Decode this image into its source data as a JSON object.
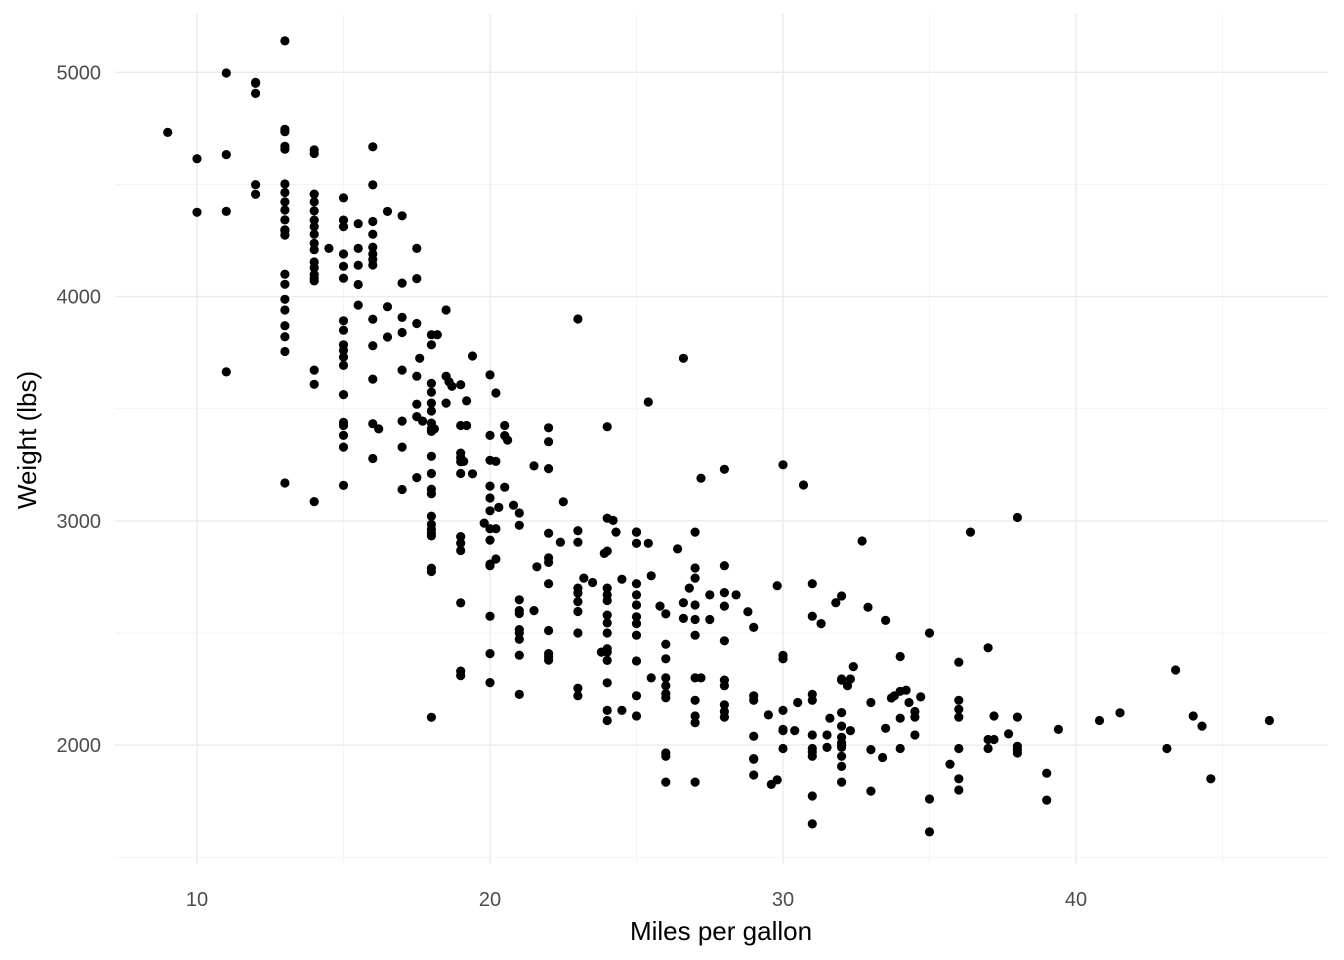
{
  "chart_data": {
    "type": "scatter",
    "title": "",
    "xlabel": "Miles per gallon",
    "ylabel": "Weight (lbs)",
    "xlim": [
      7.2,
      48.6
    ],
    "ylim": [
      1470,
      5260
    ],
    "x_ticks": [
      10,
      20,
      30,
      40
    ],
    "x_tick_labels": [
      "10",
      "20",
      "30",
      "40"
    ],
    "y_ticks": [
      2000,
      3000,
      4000,
      5000
    ],
    "y_tick_labels": [
      "2000",
      "3000",
      "4000",
      "5000"
    ],
    "grid": true,
    "legend": "none",
    "point_color": "#000000",
    "points": [
      [
        9,
        4732
      ],
      [
        10,
        4615
      ],
      [
        10,
        4376
      ],
      [
        11,
        4997
      ],
      [
        11,
        4633
      ],
      [
        11,
        4380
      ],
      [
        11,
        3664
      ],
      [
        12,
        4955
      ],
      [
        12,
        4951
      ],
      [
        12,
        4906
      ],
      [
        12,
        4499
      ],
      [
        12,
        4456
      ],
      [
        13,
        5140
      ],
      [
        13,
        4746
      ],
      [
        13,
        4735
      ],
      [
        13,
        4670
      ],
      [
        13,
        4657
      ],
      [
        13,
        4502
      ],
      [
        13,
        4464
      ],
      [
        13,
        4422
      ],
      [
        13,
        4386
      ],
      [
        13,
        4342
      ],
      [
        13,
        4298
      ],
      [
        13,
        4294
      ],
      [
        13,
        4274
      ],
      [
        13,
        4100
      ],
      [
        13,
        4055
      ],
      [
        13,
        3988
      ],
      [
        13,
        3940
      ],
      [
        13,
        3870
      ],
      [
        13,
        3821
      ],
      [
        13,
        3755
      ],
      [
        13,
        3169
      ],
      [
        14,
        4654
      ],
      [
        14,
        4638
      ],
      [
        14,
        4457
      ],
      [
        14,
        4422
      ],
      [
        14,
        4382
      ],
      [
        14,
        4341
      ],
      [
        14,
        4312
      ],
      [
        14,
        4278
      ],
      [
        14,
        4237
      ],
      [
        14,
        4209
      ],
      [
        14,
        4154
      ],
      [
        14,
        4129
      ],
      [
        14,
        4098
      ],
      [
        14,
        4082
      ],
      [
        14,
        4070
      ],
      [
        14,
        3672
      ],
      [
        14,
        3609
      ],
      [
        14,
        3086
      ],
      [
        14.5,
        4215
      ],
      [
        15,
        4440
      ],
      [
        15,
        4341
      ],
      [
        15,
        4312
      ],
      [
        15,
        4190
      ],
      [
        15,
        4135
      ],
      [
        15,
        4082
      ],
      [
        15,
        3892
      ],
      [
        15,
        3850
      ],
      [
        15,
        3785
      ],
      [
        15,
        3760
      ],
      [
        15,
        3730
      ],
      [
        15,
        3693
      ],
      [
        15,
        3563
      ],
      [
        15,
        3439
      ],
      [
        15,
        3425
      ],
      [
        15,
        3381
      ],
      [
        15,
        3329
      ],
      [
        15,
        3158
      ],
      [
        15.5,
        4325
      ],
      [
        15.5,
        4140
      ],
      [
        15.5,
        4054
      ],
      [
        15.5,
        3962
      ],
      [
        15.5,
        4215
      ],
      [
        16,
        4668
      ],
      [
        16,
        4498
      ],
      [
        16,
        4335
      ],
      [
        16,
        4278
      ],
      [
        16,
        4220
      ],
      [
        16,
        4190
      ],
      [
        16,
        4165
      ],
      [
        16,
        4141
      ],
      [
        16,
        3899
      ],
      [
        16,
        3781
      ],
      [
        16,
        3632
      ],
      [
        16,
        3433
      ],
      [
        16,
        3278
      ],
      [
        16.2,
        3410
      ],
      [
        16.5,
        4380
      ],
      [
        16.5,
        3955
      ],
      [
        16.5,
        3820
      ],
      [
        17,
        4360
      ],
      [
        17,
        4060
      ],
      [
        17,
        3907
      ],
      [
        17,
        3840
      ],
      [
        17,
        3672
      ],
      [
        17,
        3445
      ],
      [
        17,
        3329
      ],
      [
        17,
        3140
      ],
      [
        17.5,
        4215
      ],
      [
        17.5,
        4080
      ],
      [
        17.5,
        3880
      ],
      [
        17.5,
        3645
      ],
      [
        17.5,
        3520
      ],
      [
        17.5,
        3465
      ],
      [
        17.5,
        3193
      ],
      [
        17.6,
        3725
      ],
      [
        17.7,
        3445
      ],
      [
        18,
        3830
      ],
      [
        18,
        3785
      ],
      [
        18,
        3613
      ],
      [
        18,
        3574
      ],
      [
        18,
        3525
      ],
      [
        18,
        3490
      ],
      [
        18,
        3436
      ],
      [
        18,
        3410
      ],
      [
        18,
        3399
      ],
      [
        18,
        3288
      ],
      [
        18,
        3211
      ],
      [
        18,
        3141
      ],
      [
        18,
        3121
      ],
      [
        18,
        3021
      ],
      [
        18,
        2984
      ],
      [
        18,
        2962
      ],
      [
        18,
        2945
      ],
      [
        18,
        2933
      ],
      [
        18,
        2789
      ],
      [
        18,
        2774
      ],
      [
        18,
        2124
      ],
      [
        18.1,
        3410
      ],
      [
        18.2,
        3830
      ],
      [
        18.5,
        3940
      ],
      [
        18.5,
        3645
      ],
      [
        18.5,
        3525
      ],
      [
        18.6,
        3620
      ],
      [
        18.7,
        3600
      ],
      [
        19,
        3607
      ],
      [
        19,
        3425
      ],
      [
        19,
        3302
      ],
      [
        19,
        3282
      ],
      [
        19,
        3264
      ],
      [
        19,
        3211
      ],
      [
        19,
        2930
      ],
      [
        19,
        2901
      ],
      [
        19,
        2868
      ],
      [
        19,
        2634
      ],
      [
        19,
        2330
      ],
      [
        19,
        2310
      ],
      [
        19.2,
        3535
      ],
      [
        19.2,
        3425
      ],
      [
        19.1,
        3265
      ],
      [
        19.4,
        3735
      ],
      [
        19.4,
        3210
      ],
      [
        19.8,
        2990
      ],
      [
        20,
        3651
      ],
      [
        20,
        3381
      ],
      [
        20,
        3270
      ],
      [
        20,
        3155
      ],
      [
        20,
        3102
      ],
      [
        20,
        3045
      ],
      [
        20,
        2965
      ],
      [
        20,
        2914
      ],
      [
        20,
        2807
      ],
      [
        20,
        2800
      ],
      [
        20,
        2408
      ],
      [
        20,
        2279
      ],
      [
        20,
        2575
      ],
      [
        20.2,
        3570
      ],
      [
        20.2,
        3265
      ],
      [
        20.2,
        2965
      ],
      [
        20.2,
        2830
      ],
      [
        20.3,
        3060
      ],
      [
        20.5,
        3425
      ],
      [
        20.5,
        3380
      ],
      [
        20.6,
        3360
      ],
      [
        20.5,
        3150
      ],
      [
        20.8,
        3070
      ],
      [
        21,
        3035
      ],
      [
        21,
        2980
      ],
      [
        21,
        2648
      ],
      [
        21,
        2600
      ],
      [
        21,
        2587
      ],
      [
        21,
        2515
      ],
      [
        21,
        2500
      ],
      [
        21,
        2472
      ],
      [
        21,
        2401
      ],
      [
        21,
        2226
      ],
      [
        21.5,
        3245
      ],
      [
        21.5,
        2600
      ],
      [
        21.6,
        2795
      ],
      [
        22,
        3415
      ],
      [
        22,
        3353
      ],
      [
        22,
        3233
      ],
      [
        22,
        2945
      ],
      [
        22,
        2835
      ],
      [
        22,
        2815
      ],
      [
        22,
        2720
      ],
      [
        22,
        2511
      ],
      [
        22,
        2408
      ],
      [
        22,
        2395
      ],
      [
        22,
        2379
      ],
      [
        22.4,
        2905
      ],
      [
        22.5,
        3085
      ],
      [
        23,
        3900
      ],
      [
        23,
        2956
      ],
      [
        23,
        2905
      ],
      [
        23,
        2700
      ],
      [
        23,
        2678
      ],
      [
        23,
        2640
      ],
      [
        23,
        2596
      ],
      [
        23,
        2500
      ],
      [
        23,
        2254
      ],
      [
        23,
        2220
      ],
      [
        23.2,
        2745
      ],
      [
        23.5,
        2725
      ],
      [
        23.8,
        2415
      ],
      [
        23.9,
        2855
      ],
      [
        24,
        3420
      ],
      [
        24,
        3012
      ],
      [
        24,
        2865
      ],
      [
        24,
        2700
      ],
      [
        24,
        2670
      ],
      [
        24,
        2645
      ],
      [
        24,
        2580
      ],
      [
        24,
        2545
      ],
      [
        24,
        2500
      ],
      [
        24,
        2430
      ],
      [
        24,
        2415
      ],
      [
        24,
        2378
      ],
      [
        24,
        2278
      ],
      [
        24,
        2155
      ],
      [
        24,
        2110
      ],
      [
        24.2,
        3002
      ],
      [
        24.3,
        2950
      ],
      [
        24.5,
        2740
      ],
      [
        24.5,
        2155
      ],
      [
        25,
        2950
      ],
      [
        25,
        2950
      ],
      [
        25,
        2900
      ],
      [
        25,
        2720
      ],
      [
        25,
        2670
      ],
      [
        25,
        2625
      ],
      [
        25,
        2572
      ],
      [
        25,
        2542
      ],
      [
        25,
        2490
      ],
      [
        25,
        2375
      ],
      [
        25,
        2220
      ],
      [
        25,
        2130
      ],
      [
        25.4,
        3530
      ],
      [
        25.4,
        2900
      ],
      [
        25.5,
        2755
      ],
      [
        25.5,
        2300
      ],
      [
        25.8,
        2620
      ],
      [
        26,
        2585
      ],
      [
        26,
        2450
      ],
      [
        26,
        2385
      ],
      [
        26,
        2300
      ],
      [
        26,
        2265
      ],
      [
        26,
        2230
      ],
      [
        26,
        2211
      ],
      [
        26,
        1965
      ],
      [
        26,
        1950
      ],
      [
        26,
        1835
      ],
      [
        26.4,
        2875
      ],
      [
        26.6,
        2635
      ],
      [
        26.6,
        2565
      ],
      [
        26.6,
        3725
      ],
      [
        26.8,
        2700
      ],
      [
        27,
        2950
      ],
      [
        27,
        2790
      ],
      [
        27,
        2745
      ],
      [
        27,
        2625
      ],
      [
        27,
        2560
      ],
      [
        27,
        2490
      ],
      [
        27,
        2300
      ],
      [
        27,
        2130
      ],
      [
        27,
        2100
      ],
      [
        27,
        1835
      ],
      [
        27,
        2200
      ],
      [
        27.2,
        3190
      ],
      [
        27.2,
        2300
      ],
      [
        27.5,
        2670
      ],
      [
        27.5,
        2560
      ],
      [
        28,
        3230
      ],
      [
        28,
        2800
      ],
      [
        28,
        2680
      ],
      [
        28,
        2620
      ],
      [
        28,
        2465
      ],
      [
        28,
        2290
      ],
      [
        28,
        2265
      ],
      [
        28,
        2180
      ],
      [
        28,
        2150
      ],
      [
        28,
        2125
      ],
      [
        28.4,
        2670
      ],
      [
        28.8,
        2595
      ],
      [
        29,
        2525
      ],
      [
        29,
        2220
      ],
      [
        29,
        2200
      ],
      [
        29,
        2040
      ],
      [
        29,
        1937
      ],
      [
        29,
        1940
      ],
      [
        29,
        1867
      ],
      [
        29.5,
        2135
      ],
      [
        29.8,
        2711
      ],
      [
        29.8,
        1845
      ],
      [
        30,
        3250
      ],
      [
        30,
        2400
      ],
      [
        30,
        2385
      ],
      [
        30,
        2155
      ],
      [
        30,
        2065
      ],
      [
        30,
        2070
      ],
      [
        30,
        1985
      ],
      [
        29.6,
        1825
      ],
      [
        30.5,
        2190
      ],
      [
        30.4,
        2065
      ],
      [
        30.7,
        3160
      ],
      [
        31,
        2720
      ],
      [
        31,
        2575
      ],
      [
        31,
        2226
      ],
      [
        31,
        2200
      ],
      [
        31,
        2045
      ],
      [
        31,
        1985
      ],
      [
        31,
        1970
      ],
      [
        31,
        1950
      ],
      [
        31,
        1773
      ],
      [
        31,
        1649
      ],
      [
        31.3,
        2542
      ],
      [
        31.5,
        2045
      ],
      [
        31.5,
        1990
      ],
      [
        31.6,
        2120
      ],
      [
        31.8,
        2635
      ],
      [
        32,
        2665
      ],
      [
        32,
        2295
      ],
      [
        32,
        2290
      ],
      [
        32,
        2145
      ],
      [
        32,
        2085
      ],
      [
        32,
        2035
      ],
      [
        32,
        2000
      ],
      [
        32,
        1990
      ],
      [
        32,
        1950
      ],
      [
        32,
        1905
      ],
      [
        32,
        1835
      ],
      [
        32,
        2010
      ],
      [
        32.2,
        2265
      ],
      [
        32.4,
        2350
      ],
      [
        32.3,
        2295
      ],
      [
        32.3,
        2065
      ],
      [
        32.7,
        2910
      ],
      [
        32.9,
        2615
      ],
      [
        33,
        2190
      ],
      [
        33,
        1980
      ],
      [
        33,
        1795
      ],
      [
        33.5,
        2556
      ],
      [
        33.5,
        2075
      ],
      [
        33.4,
        1945
      ],
      [
        33.8,
        2220
      ],
      [
        33.7,
        2210
      ],
      [
        34,
        2395
      ],
      [
        34,
        2240
      ],
      [
        34,
        2120
      ],
      [
        34,
        1985
      ],
      [
        34.2,
        2245
      ],
      [
        34.3,
        2190
      ],
      [
        34.5,
        2150
      ],
      [
        34.5,
        2045
      ],
      [
        34.5,
        2125
      ],
      [
        34.7,
        2215
      ],
      [
        35,
        2500
      ],
      [
        35,
        1760
      ],
      [
        35,
        1613
      ],
      [
        35.7,
        1915
      ],
      [
        36,
        2370
      ],
      [
        36,
        2200
      ],
      [
        36,
        2160
      ],
      [
        36,
        2125
      ],
      [
        36,
        1985
      ],
      [
        36,
        1850
      ],
      [
        36,
        1800
      ],
      [
        36.4,
        2950
      ],
      [
        37,
        2434
      ],
      [
        37,
        2025
      ],
      [
        37,
        1985
      ],
      [
        37.2,
        2130
      ],
      [
        37.2,
        2025
      ],
      [
        37.7,
        2050
      ],
      [
        38,
        3015
      ],
      [
        38,
        2125
      ],
      [
        38,
        1995
      ],
      [
        38,
        1980
      ],
      [
        38,
        1965
      ],
      [
        39,
        1875
      ],
      [
        39,
        1755
      ],
      [
        39.4,
        2070
      ],
      [
        40.8,
        2110
      ],
      [
        41.5,
        2144
      ],
      [
        43.1,
        1985
      ],
      [
        43.4,
        2335
      ],
      [
        44,
        2130
      ],
      [
        44.3,
        2085
      ],
      [
        44.6,
        1850
      ],
      [
        46.6,
        2110
      ]
    ]
  }
}
